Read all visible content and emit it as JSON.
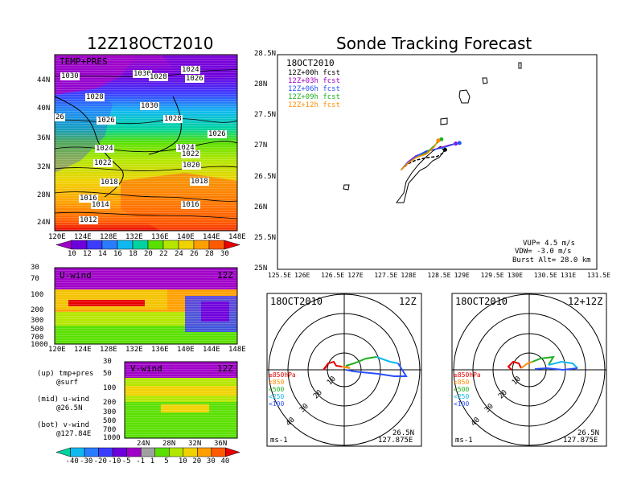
{
  "left": {
    "title": "12Z18OCT2010",
    "map": {
      "label": "TEMP+PRES",
      "lat_labels": [
        "44N",
        "40N",
        "36N",
        "32N",
        "28N",
        "24N"
      ],
      "lon_labels": [
        "120E",
        "124E",
        "128E",
        "132E",
        "136E",
        "140E",
        "144E",
        "148E"
      ],
      "isobar_labels": [
        "1030",
        "1030",
        "1028",
        "1024",
        "1026",
        "1028",
        "1030",
        "26",
        "1026",
        "1028",
        "1026",
        "1024",
        "1024",
        "1022",
        "1022",
        "1020",
        "1018",
        "1018",
        "1016",
        "1014",
        "1016",
        "1012"
      ],
      "colorbar_labels": [
        "10",
        "12",
        "14",
        "16",
        "18",
        "20",
        "22",
        "24",
        "26",
        "28",
        "30"
      ],
      "colorbar_colors": [
        "#a000c8",
        "#6e00dc",
        "#3c3cff",
        "#2a7cff",
        "#10b8f0",
        "#00d2a0",
        "#5ae000",
        "#b4e600",
        "#f0d200",
        "#ffa000",
        "#ff5a00",
        "#e80000"
      ]
    },
    "uwind": {
      "label": "U-wind",
      "time": "12Z",
      "levels": [
        "30",
        "70",
        "100",
        "200",
        "300",
        "500",
        "700",
        "1000"
      ],
      "lon_labels": [
        "120E",
        "124E",
        "128E",
        "132E",
        "136E",
        "140E",
        "144E",
        "148E"
      ]
    },
    "vwind": {
      "label": "V-wind",
      "time": "12Z",
      "levels": [
        "30",
        "50",
        "100",
        "200",
        "300",
        "500",
        "700",
        "1000"
      ],
      "lat_labels": [
        "24N",
        "28N",
        "32N",
        "36N"
      ]
    },
    "notes": [
      "(up) tmp+pres",
      "@surf",
      "(mid) u-wind",
      "@26.5N",
      "(bot) v-wind",
      "@127.84E"
    ],
    "wind_colorbar_labels": [
      "-40",
      "-30",
      "-20",
      "-10",
      "-5",
      "-1",
      "1",
      "5",
      "10",
      "20",
      "30",
      "40"
    ],
    "wind_colorbar_colors": [
      "#00d2a0",
      "#10b8f0",
      "#2a7cff",
      "#3c3cff",
      "#6e00dc",
      "#a000c8",
      "#a0a0a0",
      "#5ae000",
      "#b4e600",
      "#f0d200",
      "#ffa000",
      "#ff5a00",
      "#e80000"
    ]
  },
  "right": {
    "title": "Sonde Tracking Forecast",
    "track": {
      "date": "18OCT2010",
      "legend": [
        {
          "label": "12Z+00h  fcst",
          "color": "#000000"
        },
        {
          "label": "12Z+03h  fcst",
          "color": "#a000c8"
        },
        {
          "label": "12Z+06h  fcst",
          "color": "#2a50ff"
        },
        {
          "label": "12Z+09h  fcst",
          "color": "#20b020"
        },
        {
          "label": "12Z+12h  fcst",
          "color": "#ff8c00"
        }
      ],
      "lat_labels": [
        "28.5N",
        "28N",
        "27.5N",
        "27N",
        "26.5N",
        "26N",
        "25.5N",
        "25N"
      ],
      "lon_labels": [
        "125.5E",
        "126E",
        "126.5E",
        "127E",
        "127.5E",
        "128E",
        "128.5E",
        "129E",
        "129.5E",
        "130E",
        "130.5E",
        "131E",
        "131.5E"
      ],
      "info": [
        "VUP=  4.5  m/s",
        "VDW=  -3.0  m/s",
        "Burst Alt=  28.0  km"
      ]
    },
    "hodo1": {
      "date": "18OCT2010",
      "time": "12Z",
      "ring_labels": [
        "10",
        "20",
        "30",
        "40"
      ],
      "levels": [
        "≥850hPa",
        "<850",
        "<500",
        "<250",
        "<100"
      ],
      "level_colors": [
        "#e80000",
        "#ff8c00",
        "#20b020",
        "#10b8f0",
        "#2a50ff"
      ],
      "units": "ms-1",
      "loc_lat": "26.5N",
      "loc_lon": "127.875E"
    },
    "hodo2": {
      "date": "18OCT2010",
      "time": "12+12Z",
      "ring_labels": [
        "10",
        "20",
        "30",
        "40"
      ],
      "levels": [
        "≥850hPa",
        "<850",
        "<500",
        "<250",
        "<100"
      ],
      "level_colors": [
        "#e80000",
        "#ff8c00",
        "#20b020",
        "#10b8f0",
        "#2a50ff"
      ],
      "units": "ms-1",
      "loc_lat": "26.5N",
      "loc_lon": "127.875E"
    }
  },
  "chart_data": [
    {
      "type": "heatmap",
      "title": "12Z18OCT2010",
      "subtitle": "TEMP+PRES",
      "x_ticks": [
        "120E",
        "124E",
        "128E",
        "132E",
        "136E",
        "140E",
        "144E",
        "148E"
      ],
      "y_ticks": [
        "24N",
        "28N",
        "32N",
        "36N",
        "40N",
        "44N"
      ],
      "colorbar": [
        10,
        12,
        14,
        16,
        18,
        20,
        22,
        24,
        26,
        28,
        30
      ],
      "contour_labels": [
        1030,
        1030,
        1028,
        1024,
        1026,
        1028,
        1030,
        26,
        1026,
        1028,
        1026,
        1024,
        1024,
        1022,
        1022,
        1020,
        1018,
        1018,
        1016,
        1014,
        1016,
        1012
      ]
    },
    {
      "type": "heatmap",
      "title": "U-wind",
      "x_ticks": [
        "120E",
        "124E",
        "128E",
        "132E",
        "136E",
        "140E",
        "144E",
        "148E"
      ],
      "y_ticks": [
        30,
        70,
        100,
        200,
        300,
        500,
        700,
        1000
      ]
    },
    {
      "type": "heatmap",
      "title": "V-wind",
      "x_ticks": [
        "24N",
        "28N",
        "32N",
        "36N"
      ],
      "y_ticks": [
        30,
        50,
        100,
        200,
        300,
        500,
        700,
        1000
      ],
      "colorbar": [
        -40,
        -30,
        -20,
        -10,
        -5,
        -1,
        1,
        5,
        10,
        20,
        30,
        40
      ]
    },
    {
      "type": "line",
      "title": "Sonde Tracking Forecast",
      "xlim": [
        125.5,
        131.5
      ],
      "ylim": [
        25,
        28.5
      ],
      "series": [
        {
          "name": "12Z+00h  fcst",
          "x": [
            127.82,
            127.95,
            128.1,
            128.3,
            128.5,
            128.62,
            128.65
          ],
          "y": [
            26.62,
            26.72,
            26.78,
            26.82,
            26.84,
            26.9,
            26.95
          ]
        },
        {
          "name": "12Z+03h  fcst",
          "x": [
            127.82,
            127.95,
            128.1,
            128.3,
            128.55,
            128.75,
            128.85
          ],
          "y": [
            26.62,
            26.75,
            26.85,
            26.92,
            26.98,
            27.03,
            27.05
          ]
        },
        {
          "name": "12Z+06h  fcst",
          "x": [
            127.82,
            127.95,
            128.1,
            128.3,
            128.6,
            128.85,
            128.92
          ],
          "y": [
            26.62,
            26.74,
            26.84,
            26.93,
            26.98,
            27.05,
            27.06
          ]
        },
        {
          "name": "12Z+09h  fcst",
          "x": [
            127.82,
            127.95,
            128.1,
            128.3,
            128.45,
            128.55,
            128.58
          ],
          "y": [
            26.62,
            26.73,
            26.82,
            26.9,
            27.02,
            27.1,
            27.12
          ]
        },
        {
          "name": "12Z+12h  fcst",
          "x": [
            127.82,
            127.95,
            128.1,
            128.3,
            128.45,
            128.5,
            128.52
          ],
          "y": [
            26.62,
            26.73,
            26.82,
            26.88,
            27.0,
            27.08,
            27.1
          ]
        }
      ]
    },
    {
      "type": "scatter",
      "title": "18OCT2010 12Z",
      "ring_labels": [
        10,
        20,
        30,
        40
      ],
      "levels": [
        "≥850hPa",
        "<850",
        "<500",
        "<250",
        "<100"
      ]
    },
    {
      "type": "scatter",
      "title": "18OCT2010 12+12Z",
      "ring_labels": [
        10,
        20,
        30,
        40
      ],
      "levels": [
        "≥850hPa",
        "<850",
        "<500",
        "<250",
        "<100"
      ]
    }
  ]
}
